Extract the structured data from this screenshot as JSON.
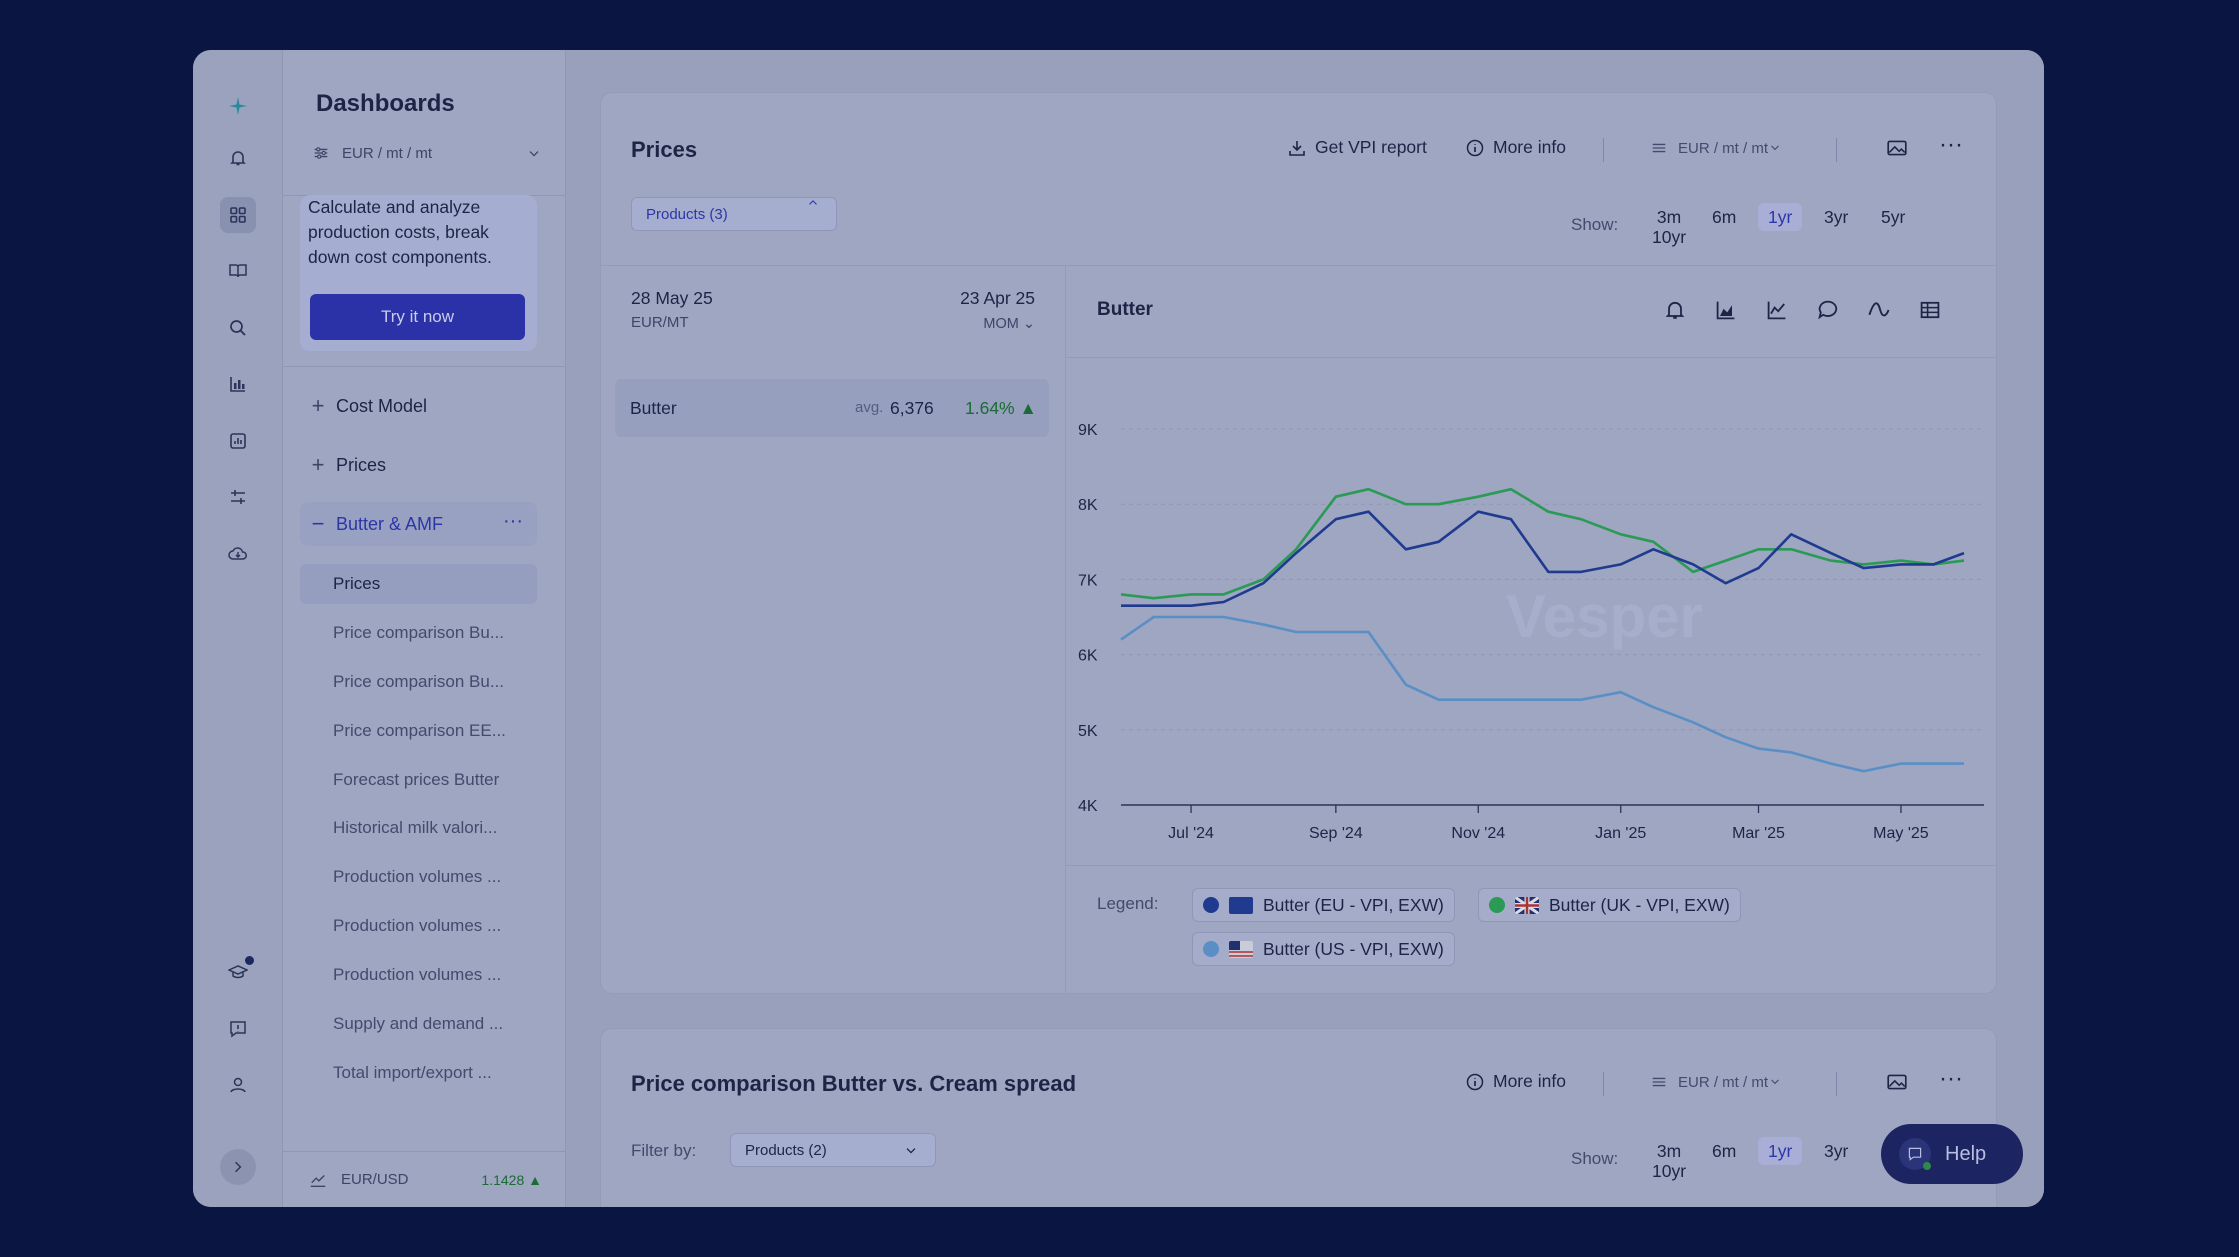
{
  "sidebar": {
    "title": "Dashboards",
    "units": "EUR / mt / mt",
    "promo": {
      "text": "Calculate and analyze production costs, break down cost components.",
      "button": "Try it now"
    },
    "items": [
      {
        "label": "Cost Model",
        "icon": "plus-icon"
      },
      {
        "label": "Prices",
        "icon": "plus-icon"
      },
      {
        "label": "Butter & AMF",
        "icon": "minus-icon",
        "active": true
      }
    ],
    "subitems": [
      "Prices",
      "Price comparison Bu...",
      "Price comparison Bu...",
      "Price comparison EE...",
      "Forecast prices Butter",
      "Historical milk valori...",
      "Production volumes ...",
      "Production volumes ...",
      "Production volumes ...",
      "Supply and demand ...",
      "Total import/export ..."
    ],
    "footer": {
      "label": "EUR/USD",
      "value": "1.1428"
    }
  },
  "card1": {
    "title": "Prices",
    "get_report": "Get VPI report",
    "more_info": "More info",
    "units": "EUR / mt / mt",
    "products_pill": "Products (3)",
    "show_label": "Show:",
    "ranges": [
      "3m",
      "6m",
      "1yr",
      "3yr",
      "5yr"
    ],
    "range_extra": "10yr",
    "selected_range": "1yr",
    "date_left": "28 May 25",
    "unit_left": "EUR/MT",
    "date_right": "23 Apr 25",
    "mom": "MOM",
    "product": {
      "name": "Butter",
      "avg_label": "avg.",
      "avg": "6,376",
      "change": "1.64%"
    },
    "chart_title": "Butter",
    "legend_label": "Legend:",
    "watermark": "Vesper"
  },
  "card2": {
    "title": "Price comparison Butter vs. Cream spread",
    "more_info": "More info",
    "units": "EUR / mt / mt",
    "filter_label": "Filter by:",
    "products_pill": "Products (2)",
    "show_label": "Show:",
    "ranges": [
      "3m",
      "6m",
      "1yr",
      "3yr"
    ],
    "range_extra": "10yr"
  },
  "help": {
    "label": "Help"
  },
  "colors": {
    "eu": "#1f3a8f",
    "uk": "#2a9a55",
    "us": "#5a8fc6",
    "accent": "#2b32a8"
  },
  "chart_data": {
    "type": "line",
    "title": "Butter",
    "ylim": [
      4000,
      9000
    ],
    "y_ticks": [
      "4K",
      "5K",
      "6K",
      "7K",
      "8K",
      "9K"
    ],
    "x_tick_labels": [
      "Jul '24",
      "Sep '24",
      "Nov '24",
      "Jan '25",
      "Mar '25",
      "May '25"
    ],
    "x": [
      "2024-06-01",
      "2024-06-15",
      "2024-07-01",
      "2024-07-15",
      "2024-08-01",
      "2024-08-15",
      "2024-09-01",
      "2024-09-15",
      "2024-10-01",
      "2024-10-15",
      "2024-11-01",
      "2024-11-15",
      "2024-12-01",
      "2024-12-15",
      "2025-01-01",
      "2025-01-15",
      "2025-02-01",
      "2025-02-15",
      "2025-03-01",
      "2025-03-15",
      "2025-04-01",
      "2025-04-15",
      "2025-05-01",
      "2025-05-15",
      "2025-05-28"
    ],
    "series": [
      {
        "name": "Butter (EU - VPI, EXW)",
        "values": [
          6650,
          6650,
          6650,
          6700,
          6950,
          7350,
          7800,
          7900,
          7400,
          7500,
          7900,
          7800,
          7100,
          7100,
          7200,
          7400,
          7200,
          6950,
          7150,
          7600,
          7350,
          7150,
          7200,
          7200,
          7350
        ]
      },
      {
        "name": "Butter (UK - VPI, EXW)",
        "values": [
          6800,
          6750,
          6800,
          6800,
          7000,
          7400,
          8100,
          8200,
          8000,
          8000,
          8100,
          8200,
          7900,
          7800,
          7600,
          7500,
          7100,
          7250,
          7400,
          7400,
          7250,
          7200,
          7250,
          7200,
          7250
        ]
      },
      {
        "name": "Butter (US - VPI, EXW)",
        "values": [
          6200,
          6500,
          6500,
          6500,
          6400,
          6300,
          6300,
          6300,
          5600,
          5400,
          5400,
          5400,
          5400,
          5400,
          5500,
          5300,
          5100,
          4900,
          4750,
          4700,
          4550,
          4450,
          4550,
          4550,
          4550
        ]
      }
    ],
    "grid": true,
    "legend": "bottom"
  }
}
